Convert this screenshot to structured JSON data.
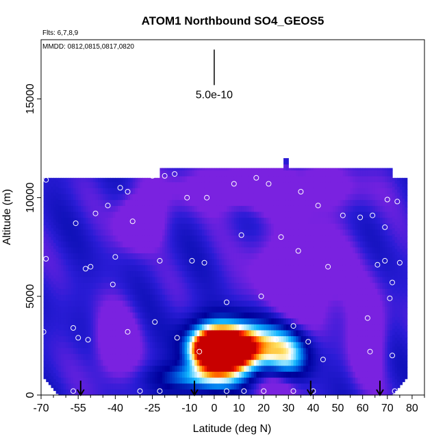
{
  "chart_data": {
    "type": "heatmap",
    "title": "ATOM1 Northbound SO4_GEOS5",
    "xlabel": "Latitude (deg N)",
    "ylabel": "Altitude (m)",
    "xlim": [
      -70,
      85
    ],
    "ylim": [
      0,
      18000
    ],
    "x_ticks": [
      -70,
      -55,
      -40,
      -25,
      -10,
      0,
      10,
      20,
      30,
      40,
      50,
      60,
      70,
      80
    ],
    "x_tick_labels": [
      "-70",
      "-55",
      "-40",
      "-25",
      "-10",
      "0",
      "10",
      "20",
      "30",
      "40",
      "50",
      "60",
      "70",
      "80"
    ],
    "x_minor_ticks": [
      -65,
      -60,
      -50,
      -45,
      -35,
      -30,
      -20,
      -15,
      -5,
      5,
      15,
      25,
      35,
      45,
      55,
      65,
      75,
      85
    ],
    "y_ticks": [
      0,
      5000,
      10000,
      15000
    ],
    "y_tick_labels": [
      "0",
      "5000",
      "10000",
      "15000"
    ],
    "notes": {
      "flights": "Flts: 6,7,8,9",
      "dates": "MMDD: 0812,0815,0817,0820"
    },
    "scale_bar": {
      "label": "5.0e-10",
      "lat": 0,
      "alt_top": 17500,
      "alt_bottom": 15700
    },
    "flight_markers_lat": [
      -54,
      -8,
      39,
      67
    ],
    "colormap": [
      "#7a22e0",
      "#2a1cd6",
      "#0a0fb3",
      "#00009a",
      "#0036c8",
      "#007aec",
      "#13b6ff",
      "#8fe2ff",
      "#ffffff",
      "#ffe060",
      "#ff8c00",
      "#ff2800",
      "#c80000"
    ],
    "field_extent": {
      "lat_min": -69,
      "lat_max": 78,
      "alt_top": 11000,
      "high_segment": {
        "lat_min": -22,
        "lat_max": 72,
        "alt_top": 11500
      },
      "notch": {
        "lat": 29,
        "alt_top": 12000
      }
    },
    "field_features": [
      {
        "lat": -1,
        "alt": 2300,
        "sigma_lat": 6,
        "sigma_alt": 650,
        "level": 12
      },
      {
        "lat": 8,
        "alt": 2200,
        "sigma_lat": 7,
        "sigma_alt": 700,
        "level": 9
      },
      {
        "lat": 5,
        "alt": 2700,
        "sigma_lat": 10,
        "sigma_alt": 900,
        "level": 7
      },
      {
        "lat": 20,
        "alt": 2500,
        "sigma_lat": 9,
        "sigma_alt": 800,
        "level": 4
      },
      {
        "lat": 30,
        "alt": 2000,
        "sigma_lat": 6,
        "sigma_alt": 900,
        "level": 5
      },
      {
        "lat": -5,
        "alt": 900,
        "sigma_lat": 12,
        "sigma_alt": 500,
        "level": 5
      },
      {
        "lat": 26,
        "alt": 500,
        "sigma_lat": 6,
        "sigma_alt": 700,
        "level": -3
      },
      {
        "lat": -40,
        "alt": 2600,
        "sigma_lat": 6,
        "sigma_alt": 1300,
        "level": -3
      },
      {
        "lat": -30,
        "alt": 8800,
        "sigma_lat": 6,
        "sigma_alt": 900,
        "level": -4
      },
      {
        "lat": 35,
        "alt": 6000,
        "sigma_lat": 14,
        "sigma_alt": 1800,
        "level": -3
      },
      {
        "lat": 62,
        "alt": 3000,
        "sigma_lat": 5,
        "sigma_alt": 1500,
        "level": -3
      },
      {
        "lat": 20,
        "alt": 10500,
        "sigma_lat": 25,
        "sigma_alt": 800,
        "level": -3
      }
    ],
    "sample_points": [
      [
        -68,
        10900
      ],
      [
        -68,
        6900
      ],
      [
        -69,
        3200
      ],
      [
        -57,
        3400
      ],
      [
        -57,
        200
      ],
      [
        -56,
        8700
      ],
      [
        -55,
        2900
      ],
      [
        -52,
        6400
      ],
      [
        -51,
        2800
      ],
      [
        -50,
        6500
      ],
      [
        -48,
        9200
      ],
      [
        -43,
        9600
      ],
      [
        -41,
        5600
      ],
      [
        -40,
        7000
      ],
      [
        -38,
        10500
      ],
      [
        -35,
        10300
      ],
      [
        -33,
        8800
      ],
      [
        -35,
        3200
      ],
      [
        -30,
        200
      ],
      [
        -25,
        11100
      ],
      [
        -24,
        3700
      ],
      [
        -22,
        6800
      ],
      [
        -22,
        200
      ],
      [
        -20,
        11100
      ],
      [
        -16,
        11200
      ],
      [
        -15,
        2900
      ],
      [
        -11,
        10000
      ],
      [
        -9,
        6800
      ],
      [
        -6,
        2200
      ],
      [
        -4,
        6700
      ],
      [
        -3,
        10000
      ],
      [
        5,
        4700
      ],
      [
        5,
        200
      ],
      [
        8,
        10700
      ],
      [
        11,
        8100
      ],
      [
        12,
        200
      ],
      [
        17,
        11000
      ],
      [
        19,
        5000
      ],
      [
        20,
        200
      ],
      [
        22,
        10700
      ],
      [
        25,
        2800
      ],
      [
        27,
        8000
      ],
      [
        32,
        3500
      ],
      [
        32,
        200
      ],
      [
        34,
        7300
      ],
      [
        35,
        10300
      ],
      [
        38,
        2700
      ],
      [
        40,
        200
      ],
      [
        42,
        9600
      ],
      [
        44,
        1800
      ],
      [
        46,
        6500
      ],
      [
        52,
        9100
      ],
      [
        59,
        9000
      ],
      [
        62,
        3900
      ],
      [
        63,
        2200
      ],
      [
        64,
        9100
      ],
      [
        66,
        6600
      ],
      [
        69,
        6800
      ],
      [
        69,
        8500
      ],
      [
        70,
        9900
      ],
      [
        71,
        4900
      ],
      [
        72,
        5700
      ],
      [
        72,
        2000
      ],
      [
        73,
        200
      ],
      [
        74,
        9800
      ],
      [
        75,
        6700
      ]
    ]
  }
}
